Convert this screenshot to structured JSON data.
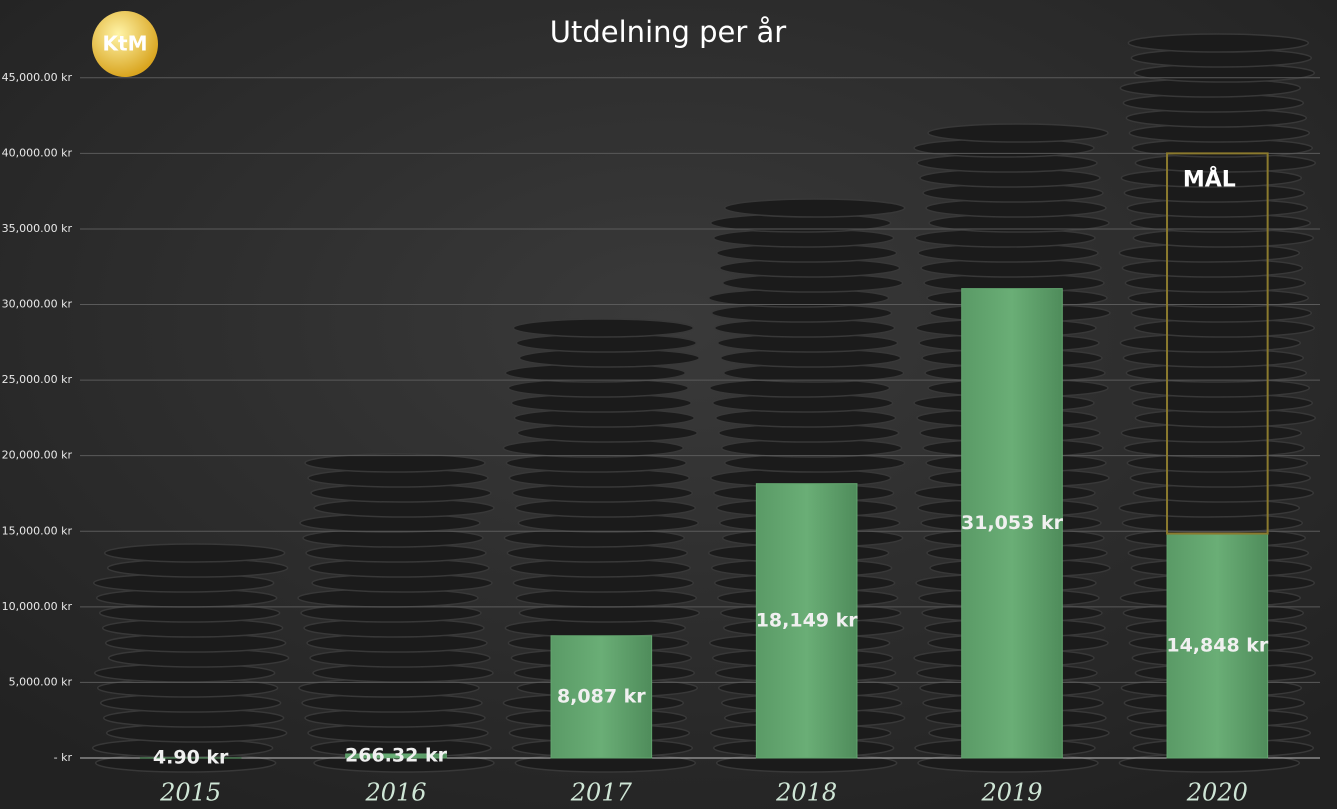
{
  "chart_data": {
    "type": "bar",
    "stacked": true,
    "title": "Utdelning per år",
    "logo": "KtM",
    "categories": [
      "2015",
      "2016",
      "2017",
      "2018",
      "2019",
      "2020"
    ],
    "series": [
      {
        "name": "Utdelning",
        "color": "#63a66f",
        "values": [
          4.9,
          266.32,
          8087,
          18149,
          31053,
          14848
        ],
        "value_labels": [
          "4.90 kr",
          "266.32 kr",
          "8,087 kr",
          "18,149 kr",
          "31,053 kr",
          "14,848 kr"
        ]
      },
      {
        "name": "MÅL",
        "color": "#8b7a2e",
        "values": [
          null,
          null,
          null,
          null,
          null,
          25152
        ]
      }
    ],
    "ylim": [
      0,
      47500
    ],
    "yticks": [
      {
        "value": 0,
        "label": "-   kr"
      },
      {
        "value": 5000,
        "label": "5,000.00 kr"
      },
      {
        "value": 10000,
        "label": "10,000.00 kr"
      },
      {
        "value": 15000,
        "label": "15,000.00 kr"
      },
      {
        "value": 20000,
        "label": "20,000.00 kr"
      },
      {
        "value": 25000,
        "label": "25,000.00 kr"
      },
      {
        "value": 30000,
        "label": "30,000.00 kr"
      },
      {
        "value": 35000,
        "label": "35,000.00 kr"
      },
      {
        "value": 40000,
        "label": "40,000.00 kr"
      },
      {
        "value": 45000,
        "label": "45,000.00 kr"
      }
    ],
    "grid": true
  }
}
